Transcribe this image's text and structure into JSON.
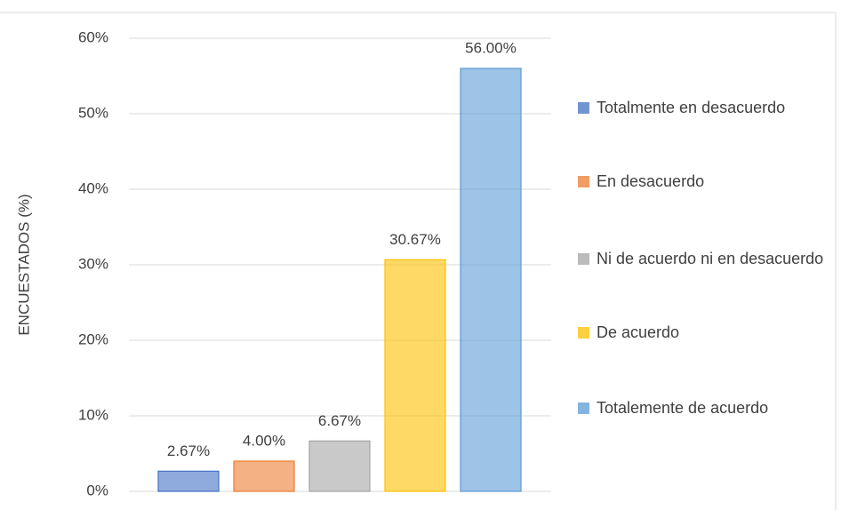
{
  "chart_data": {
    "type": "bar",
    "y_label": "ENCUESTADOS (%)",
    "series": [
      {
        "name": "Totalmente en desacuerdo",
        "color": "#4472c4",
        "values": [
          2.67
        ],
        "value_labels": [
          "2.67%"
        ]
      },
      {
        "name": "En desacuerdo",
        "color": "#ed7d31",
        "values": [
          4.0
        ],
        "value_labels": [
          "4.00%"
        ]
      },
      {
        "name": "Ni de acuerdo ni en desacuerdo",
        "color": "#a5a5a5",
        "values": [
          6.67
        ],
        "value_labels": [
          "6.67%"
        ]
      },
      {
        "name": "De acuerdo",
        "color": "#ffc000",
        "values": [
          30.67
        ],
        "value_labels": [
          "30.67%"
        ]
      },
      {
        "name": "Totalemente de acuerdo",
        "color": "#5b9bd5",
        "values": [
          56.0
        ],
        "value_labels": [
          "56.00%"
        ]
      }
    ],
    "ylim": [
      0,
      60
    ],
    "yticks": [
      {
        "value": 0,
        "label": "0%"
      },
      {
        "value": 10,
        "label": "10%"
      },
      {
        "value": 20,
        "label": "20%"
      },
      {
        "value": 30,
        "label": "30%"
      },
      {
        "value": 40,
        "label": "40%"
      },
      {
        "value": 50,
        "label": "50%"
      },
      {
        "value": 60,
        "label": "60%"
      }
    ],
    "grid": true,
    "legend": "right"
  }
}
